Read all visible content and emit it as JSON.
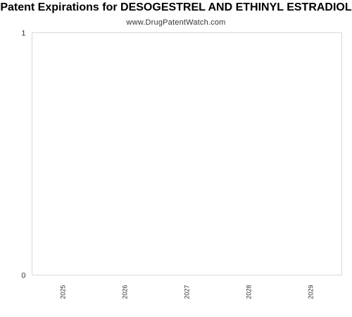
{
  "chart_data": {
    "type": "bar",
    "title": "Patent Expirations for DESOGESTREL AND ETHINYL ESTRADIOL",
    "subtitle": "www.DrugPatentWatch.com",
    "categories": [
      "2025",
      "2026",
      "2027",
      "2028",
      "2029"
    ],
    "values": [
      0,
      0,
      0,
      0,
      0
    ],
    "xlabel": "",
    "ylabel": "",
    "ylim": [
      0,
      1
    ],
    "y_ticks": [
      "0",
      "1"
    ],
    "grid": false,
    "legend": "none",
    "colors": {
      "plot_border": "#cccccc",
      "text": "#333333",
      "title": "#000000"
    }
  }
}
